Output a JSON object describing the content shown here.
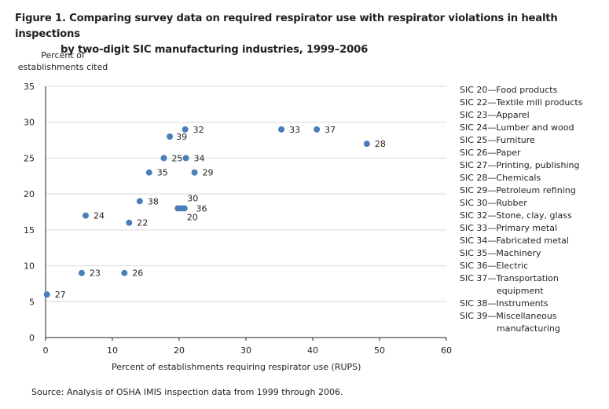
{
  "title": {
    "line1": "Figure 1. Comparing survey data on required respirator use with respirator violations in health inspections",
    "line2": "by two-digit SIC manufacturing industries, 1999–2006"
  },
  "source": "Source: Analysis of OSHA IMIS inspection data from 1999 through 2006.",
  "chart_data": {
    "type": "scatter",
    "title": "Figure 1. Comparing survey data on required respirator use with respirator violations in health inspections by two-digit SIC manufacturing industries, 1999–2006",
    "xlabel": "Percent of establishments requiring respirator use (RUPS)",
    "ylabel_line1": "Percent of",
    "ylabel_line2": "establishments cited",
    "xlim": [
      0,
      60
    ],
    "ylim": [
      0,
      35
    ],
    "xticks": [
      "0",
      "10",
      "20",
      "30",
      "40",
      "50",
      "60"
    ],
    "yticks": [
      "0",
      "5",
      "10",
      "15",
      "20",
      "25",
      "30",
      "35"
    ],
    "grid": "horizontal",
    "color": "#4a7ebb",
    "points": [
      {
        "label": "20",
        "x": 20.8,
        "y": 18
      },
      {
        "label": "22",
        "x": 12.5,
        "y": 16
      },
      {
        "label": "23",
        "x": 5.4,
        "y": 9
      },
      {
        "label": "24",
        "x": 6.0,
        "y": 17
      },
      {
        "label": "25",
        "x": 17.7,
        "y": 25
      },
      {
        "label": "26",
        "x": 11.8,
        "y": 9
      },
      {
        "label": "27",
        "x": 0.2,
        "y": 6
      },
      {
        "label": "28",
        "x": 48.1,
        "y": 27
      },
      {
        "label": "29",
        "x": 22.3,
        "y": 23
      },
      {
        "label": "30",
        "x": 19.8,
        "y": 18
      },
      {
        "label": "32",
        "x": 20.9,
        "y": 29
      },
      {
        "label": "33",
        "x": 35.3,
        "y": 29
      },
      {
        "label": "34",
        "x": 21.0,
        "y": 25
      },
      {
        "label": "35",
        "x": 15.5,
        "y": 23
      },
      {
        "label": "36",
        "x": 20.3,
        "y": 18
      },
      {
        "label": "37",
        "x": 40.6,
        "y": 29
      },
      {
        "label": "38",
        "x": 14.1,
        "y": 19
      },
      {
        "label": "39",
        "x": 18.6,
        "y": 28
      }
    ],
    "legend_placement": "right",
    "legend": [
      {
        "line1": "SIC 20—Food products"
      },
      {
        "line1": "SIC 22—Textile mill products"
      },
      {
        "line1": "SIC 23—Apparel"
      },
      {
        "line1": "SIC 24—Lumber and wood"
      },
      {
        "line1": "SIC 25—Furniture"
      },
      {
        "line1": "SIC 26—Paper"
      },
      {
        "line1": "SIC 27—Printing, publishing"
      },
      {
        "line1": "SIC 28—Chemicals"
      },
      {
        "line1": "SIC 29—Petroleum refining"
      },
      {
        "line1": "SIC 30—Rubber"
      },
      {
        "line1": "SIC 32—Stone, clay, glass"
      },
      {
        "line1": "SIC 33—Primary metal"
      },
      {
        "line1": "SIC 34—Fabricated metal"
      },
      {
        "line1": "SIC 35—Machinery"
      },
      {
        "line1": "SIC 36—Electric"
      },
      {
        "line1": "SIC 37—Transportation",
        "line2": "equipment"
      },
      {
        "line1": "SIC 38—Instruments"
      },
      {
        "line1": "SIC 39—Miscellaneous",
        "line2": "manufacturing"
      }
    ]
  }
}
